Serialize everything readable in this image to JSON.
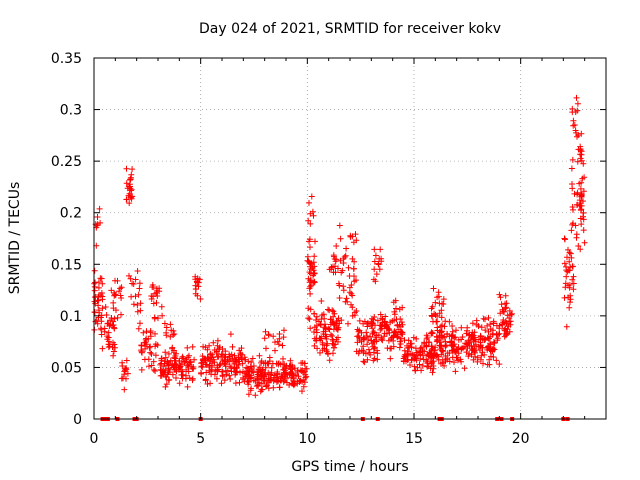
{
  "chart_data": {
    "type": "scatter",
    "title": "Day 024 of 2021, SRMTID for receiver kokv",
    "xlabel": "GPS time / hours",
    "ylabel": "SRMTID / TECUs",
    "xlim": [
      0,
      24
    ],
    "ylim": [
      0,
      0.35
    ],
    "x_ticks": [
      "0",
      "5",
      "10",
      "15",
      "20"
    ],
    "x_tick_values": [
      0,
      5,
      10,
      15,
      20
    ],
    "y_ticks": [
      "0",
      "0.05",
      "0.1",
      "0.15",
      "0.2",
      "0.25",
      "0.3",
      "0.35"
    ],
    "y_tick_values": [
      0,
      0.05,
      0.1,
      0.15,
      0.2,
      0.25,
      0.3,
      0.35
    ],
    "grid": true,
    "marker": "+",
    "series_color": "#ff0000",
    "series": [
      {
        "name": "SRMTID",
        "segments": [
          {
            "x_start": 0.0,
            "x_end": 0.4,
            "y_center": 0.11,
            "y_spread": 0.06,
            "points": 40
          },
          {
            "x_start": 0.05,
            "x_end": 0.3,
            "y_center": 0.19,
            "y_spread": 0.03,
            "points": 8
          },
          {
            "x_start": 0.5,
            "x_end": 1.0,
            "y_center": 0.085,
            "y_spread": 0.04,
            "points": 30
          },
          {
            "x_start": 0.8,
            "x_end": 1.3,
            "y_center": 0.12,
            "y_spread": 0.03,
            "points": 18
          },
          {
            "x_start": 1.3,
            "x_end": 1.6,
            "y_center": 0.05,
            "y_spread": 0.03,
            "points": 14
          },
          {
            "x_start": 1.5,
            "x_end": 1.8,
            "y_center": 0.225,
            "y_spread": 0.03,
            "points": 25
          },
          {
            "x_start": 1.6,
            "x_end": 2.2,
            "y_center": 0.12,
            "y_spread": 0.04,
            "points": 18
          },
          {
            "x_start": 2.2,
            "x_end": 3.0,
            "y_center": 0.07,
            "y_spread": 0.03,
            "points": 35
          },
          {
            "x_start": 2.6,
            "x_end": 3.2,
            "y_center": 0.12,
            "y_spread": 0.03,
            "points": 20
          },
          {
            "x_start": 3.1,
            "x_end": 4.7,
            "y_center": 0.05,
            "y_spread": 0.025,
            "points": 110
          },
          {
            "x_start": 3.3,
            "x_end": 3.8,
            "y_center": 0.08,
            "y_spread": 0.02,
            "points": 10
          },
          {
            "x_start": 4.7,
            "x_end": 5.0,
            "y_center": 0.13,
            "y_spread": 0.02,
            "points": 15
          },
          {
            "x_start": 5.0,
            "x_end": 7.0,
            "y_center": 0.055,
            "y_spread": 0.03,
            "points": 140
          },
          {
            "x_start": 7.0,
            "x_end": 10.0,
            "y_center": 0.043,
            "y_spread": 0.022,
            "points": 200
          },
          {
            "x_start": 8.0,
            "x_end": 9.0,
            "y_center": 0.075,
            "y_spread": 0.02,
            "points": 15
          },
          {
            "x_start": 10.0,
            "x_end": 10.4,
            "y_center": 0.14,
            "y_spread": 0.06,
            "points": 40
          },
          {
            "x_start": 10.0,
            "x_end": 10.3,
            "y_center": 0.205,
            "y_spread": 0.02,
            "points": 6
          },
          {
            "x_start": 10.3,
            "x_end": 11.5,
            "y_center": 0.085,
            "y_spread": 0.035,
            "points": 90
          },
          {
            "x_start": 11.0,
            "x_end": 11.5,
            "y_center": 0.15,
            "y_spread": 0.03,
            "points": 15
          },
          {
            "x_start": 11.5,
            "x_end": 12.3,
            "y_center": 0.14,
            "y_spread": 0.07,
            "points": 45
          },
          {
            "x_start": 12.3,
            "x_end": 13.3,
            "y_center": 0.075,
            "y_spread": 0.035,
            "points": 70
          },
          {
            "x_start": 13.1,
            "x_end": 13.5,
            "y_center": 0.15,
            "y_spread": 0.03,
            "points": 14
          },
          {
            "x_start": 13.3,
            "x_end": 14.5,
            "y_center": 0.085,
            "y_spread": 0.035,
            "points": 80
          },
          {
            "x_start": 14.5,
            "x_end": 16.0,
            "y_center": 0.065,
            "y_spread": 0.03,
            "points": 110
          },
          {
            "x_start": 15.8,
            "x_end": 16.4,
            "y_center": 0.1,
            "y_spread": 0.04,
            "points": 30
          },
          {
            "x_start": 16.0,
            "x_end": 17.5,
            "y_center": 0.07,
            "y_spread": 0.03,
            "points": 100
          },
          {
            "x_start": 17.5,
            "x_end": 19.0,
            "y_center": 0.075,
            "y_spread": 0.03,
            "points": 110
          },
          {
            "x_start": 19.0,
            "x_end": 19.6,
            "y_center": 0.1,
            "y_spread": 0.03,
            "points": 40
          },
          {
            "x_start": 22.0,
            "x_end": 22.5,
            "y_center": 0.14,
            "y_spread": 0.06,
            "points": 35
          },
          {
            "x_start": 22.4,
            "x_end": 22.7,
            "y_center": 0.29,
            "y_spread": 0.04,
            "points": 12
          },
          {
            "x_start": 22.4,
            "x_end": 23.0,
            "y_center": 0.21,
            "y_spread": 0.06,
            "points": 45
          },
          {
            "x_start": 22.7,
            "x_end": 23.0,
            "y_center": 0.26,
            "y_spread": 0.02,
            "points": 12
          }
        ],
        "zero_points_x": [
          0.4,
          0.55,
          0.65,
          1.1,
          1.9,
          2.0,
          5.0,
          12.6,
          13.3,
          16.2,
          16.3,
          18.9,
          19.1,
          19.6,
          22.0,
          22.2
        ]
      }
    ]
  }
}
